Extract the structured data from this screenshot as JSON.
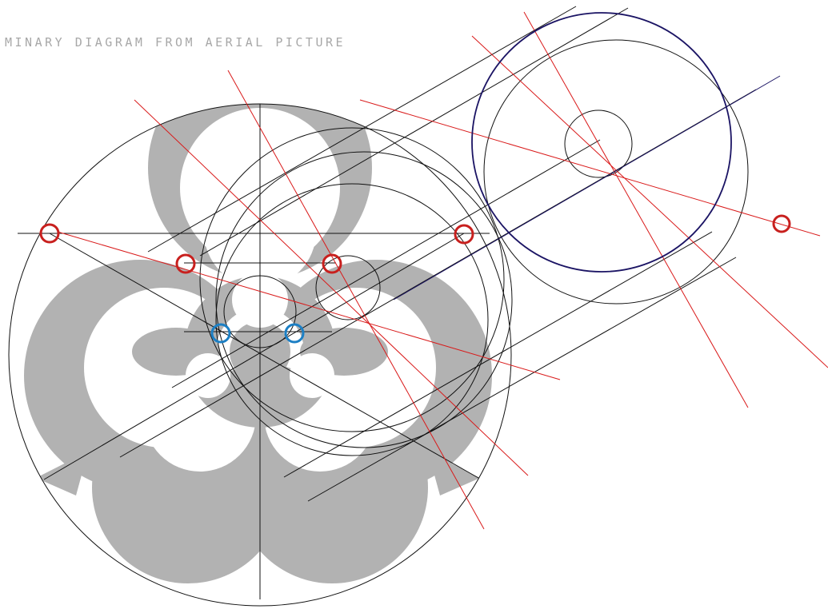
{
  "title": "MINARY DIAGRAM FROM AERIAL PICTURE",
  "colors": {
    "background": "#ffffff",
    "glyph_fill": "#b2b2b2",
    "construction_line": "#111111",
    "red_line": "#d91a1a",
    "navy_circle": "#1b1464",
    "red_marker": "#c8201e",
    "blue_marker": "#1c7fc4"
  },
  "markers": {
    "red": [
      "marker",
      "marker",
      "marker",
      "marker",
      "marker"
    ],
    "blue": [
      "marker",
      "marker"
    ]
  }
}
